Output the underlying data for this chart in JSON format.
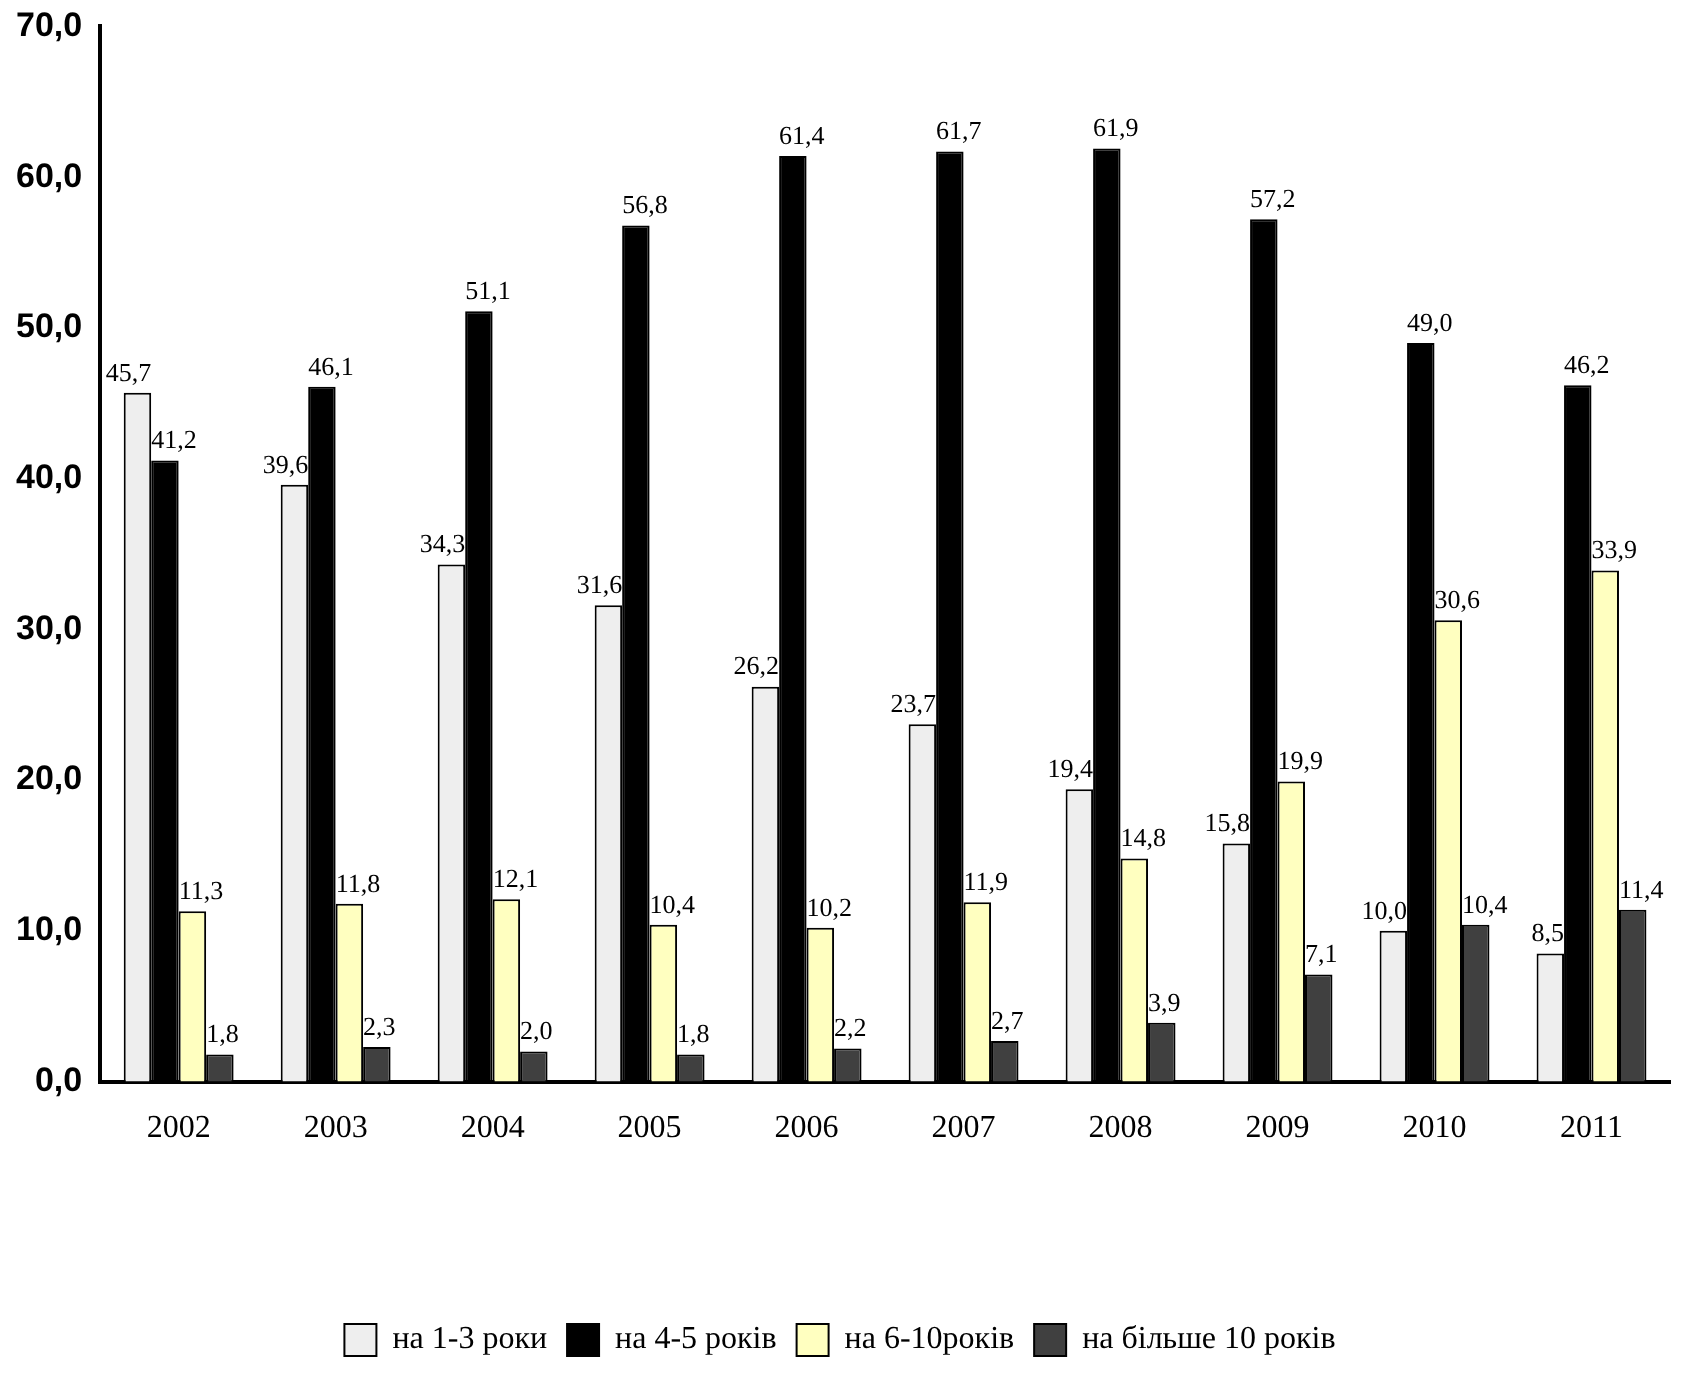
{
  "chart_data": {
    "type": "bar",
    "categories": [
      "2002",
      "2003",
      "2004",
      "2005",
      "2006",
      "2007",
      "2008",
      "2009",
      "2010",
      "2011"
    ],
    "series": [
      {
        "name": "на 1-3 роки",
        "color": "#eeeeee",
        "values": [
          45.7,
          39.6,
          34.3,
          31.6,
          26.2,
          23.7,
          19.4,
          15.8,
          10.0,
          8.5
        ],
        "value_labels": [
          "45,7",
          "39,6",
          "34,3",
          "31,6",
          "26,2",
          "23,7",
          "19,4",
          "15,8",
          "10,0",
          "8,5"
        ]
      },
      {
        "name": "на 4-5 років",
        "color": "#000000",
        "values": [
          41.2,
          46.1,
          51.1,
          56.8,
          61.4,
          61.7,
          61.9,
          57.2,
          49.0,
          46.2
        ],
        "value_labels": [
          "41,2",
          "46,1",
          "51,1",
          "56,8",
          "61,4",
          "61,7",
          "61,9",
          "57,2",
          "49,0",
          "46,2"
        ]
      },
      {
        "name": "на 6-10років",
        "color": "#ffffc0",
        "values": [
          11.3,
          11.8,
          12.1,
          10.4,
          10.2,
          11.9,
          14.8,
          19.9,
          30.6,
          33.9
        ],
        "value_labels": [
          "11,3",
          "11,8",
          "12,1",
          "10,4",
          "10,2",
          "11,9",
          "14,8",
          "19,9",
          "30,6",
          "33,9"
        ]
      },
      {
        "name": "на більше 10 років",
        "color": "#404040",
        "values": [
          1.8,
          2.3,
          2.0,
          1.8,
          2.2,
          2.7,
          3.9,
          7.1,
          10.4,
          11.4
        ],
        "value_labels": [
          "1,8",
          "2,3",
          "2,0",
          "1,8",
          "2,2",
          "2,7",
          "3,9",
          "7,1",
          "10,4",
          "11,4"
        ]
      }
    ],
    "ylim": [
      0,
      70
    ],
    "yticks": [
      {
        "value": 0,
        "label": "0,0"
      },
      {
        "value": 10,
        "label": "10,0"
      },
      {
        "value": 20,
        "label": "20,0"
      },
      {
        "value": 30,
        "label": "30,0"
      },
      {
        "value": 40,
        "label": "40,0"
      },
      {
        "value": 50,
        "label": "50,0"
      },
      {
        "value": 60,
        "label": "60,0"
      },
      {
        "value": 70,
        "label": "70,0"
      }
    ],
    "grid": false,
    "legend": "bottom"
  }
}
